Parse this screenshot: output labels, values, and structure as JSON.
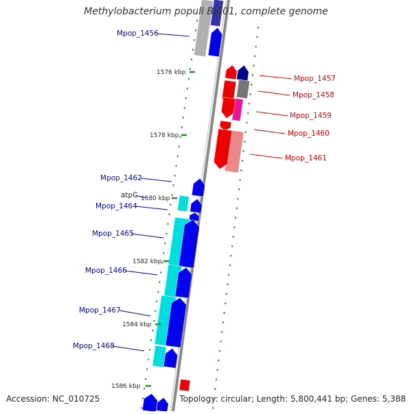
{
  "title": "Methylobacterium populi BJ001, complete genome",
  "footer": {
    "accession": "Accession: NC_010725",
    "summary": "Topology: circular; Length: 5,800,441 bp; Genes: 5,388"
  },
  "colors": {
    "forward_label": "#0000bb",
    "reverse_label": "#dd0000",
    "backbone": "#888888",
    "tick": "#228b22",
    "cds_blue": "#0000ee",
    "trna_cyan": "#00dddd",
    "cds_red": "#ee0000",
    "grey_feature": "#b0b0b0"
  },
  "scale_labels": [
    {
      "text": "1576 kbp"
    },
    {
      "text": "1578 kbp"
    },
    {
      "text": "1580 kbp"
    },
    {
      "text": "1582 kbp"
    },
    {
      "text": "1584 kbp"
    },
    {
      "text": "1586 kbp"
    }
  ],
  "forward_genes": [
    {
      "label": "Mpop_1456"
    },
    {
      "label": "Mpop_1462"
    },
    {
      "label": "atpC"
    },
    {
      "label": "Mpop_1464"
    },
    {
      "label": "Mpop_1465"
    },
    {
      "label": "Mpop_1466"
    },
    {
      "label": "Mpop_1467"
    },
    {
      "label": "Mpop_1468"
    }
  ],
  "reverse_genes": [
    {
      "label": "Mpop_1457"
    },
    {
      "label": "Mpop_1458"
    },
    {
      "label": "Mpop_1459"
    },
    {
      "label": "Mpop_1460"
    },
    {
      "label": "Mpop_1461"
    }
  ]
}
